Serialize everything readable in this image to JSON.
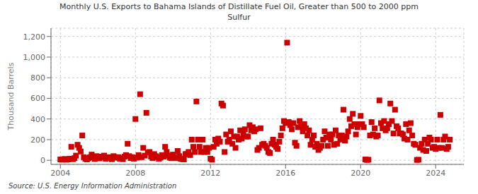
{
  "chart_data": {
    "type": "scatter",
    "title": "Monthly U.S. Exports to Bahama Islands of Distillate Fuel Oil, Greater than 500 to 2000 ppm\nSulfur",
    "ylabel": "Thousand Barrels",
    "annotations": [
      "Source: U.S. Energy Information Administration"
    ],
    "color": "#cc0000",
    "marker": "square",
    "grid": true,
    "xlim": [
      2003.5,
      2025.5
    ],
    "xticks": [
      2004,
      2008,
      2012,
      2016,
      2020,
      2024
    ],
    "ylim": [
      -40,
      1280
    ],
    "yticks": [
      0,
      200,
      400,
      600,
      800,
      {
        "value": 1000,
        "label": "1,000"
      },
      {
        "value": 1200,
        "label": "1,200"
      }
    ],
    "x": [
      2004.0,
      2004.083,
      2004.167,
      2004.25,
      2004.333,
      2004.417,
      2004.5,
      2004.583,
      2004.667,
      2004.75,
      2004.833,
      2004.917,
      2005.0,
      2005.083,
      2005.167,
      2005.25,
      2005.333,
      2005.417,
      2005.5,
      2005.583,
      2005.667,
      2005.75,
      2005.833,
      2005.917,
      2006.0,
      2006.083,
      2006.167,
      2006.25,
      2006.333,
      2006.417,
      2006.5,
      2006.583,
      2006.667,
      2006.75,
      2006.833,
      2006.917,
      2007.0,
      2007.083,
      2007.167,
      2007.25,
      2007.333,
      2007.417,
      2007.5,
      2007.583,
      2007.667,
      2007.75,
      2007.833,
      2007.917,
      2008.0,
      2008.083,
      2008.167,
      2008.25,
      2008.333,
      2008.417,
      2008.5,
      2008.583,
      2008.667,
      2008.75,
      2008.833,
      2008.917,
      2009.0,
      2009.083,
      2009.167,
      2009.25,
      2009.333,
      2009.417,
      2009.5,
      2009.583,
      2009.667,
      2009.75,
      2009.833,
      2009.917,
      2010.0,
      2010.083,
      2010.167,
      2010.25,
      2010.333,
      2010.417,
      2010.5,
      2010.583,
      2010.667,
      2010.75,
      2010.833,
      2010.917,
      2011.0,
      2011.083,
      2011.167,
      2011.25,
      2011.333,
      2011.417,
      2011.5,
      2011.583,
      2011.667,
      2011.75,
      2011.833,
      2011.917,
      2012.0,
      2012.083,
      2012.167,
      2012.25,
      2012.333,
      2012.417,
      2012.5,
      2012.583,
      2012.667,
      2012.75,
      2012.833,
      2012.917,
      2013.0,
      2013.083,
      2013.167,
      2013.25,
      2013.333,
      2013.417,
      2013.5,
      2013.583,
      2013.667,
      2013.75,
      2013.833,
      2013.917,
      2014.0,
      2014.083,
      2014.167,
      2014.25,
      2014.333,
      2014.417,
      2014.5,
      2014.583,
      2014.667,
      2014.75,
      2014.833,
      2014.917,
      2015.0,
      2015.083,
      2015.167,
      2015.25,
      2015.333,
      2015.417,
      2015.5,
      2015.583,
      2015.667,
      2015.75,
      2015.833,
      2015.917,
      2016.0,
      2016.083,
      2016.167,
      2016.25,
      2016.333,
      2016.417,
      2016.5,
      2016.583,
      2016.667,
      2016.75,
      2016.833,
      2016.917,
      2017.0,
      2017.083,
      2017.167,
      2017.25,
      2017.333,
      2017.417,
      2017.5,
      2017.583,
      2017.667,
      2017.75,
      2017.833,
      2017.917,
      2018.0,
      2018.083,
      2018.167,
      2018.25,
      2018.333,
      2018.417,
      2018.5,
      2018.583,
      2018.667,
      2018.75,
      2018.833,
      2018.917,
      2019.0,
      2019.083,
      2019.167,
      2019.25,
      2019.333,
      2019.417,
      2019.5,
      2019.583,
      2019.667,
      2019.75,
      2019.833,
      2019.917,
      2020.0,
      2020.083,
      2020.167,
      2020.25,
      2020.333,
      2020.417,
      2020.5,
      2020.583,
      2020.667,
      2020.75,
      2020.833,
      2020.917,
      2021.0,
      2021.083,
      2021.167,
      2021.25,
      2021.333,
      2021.417,
      2021.5,
      2021.583,
      2021.667,
      2021.75,
      2021.833,
      2021.917,
      2022.0,
      2022.083,
      2022.167,
      2022.25,
      2022.333,
      2022.417,
      2022.5,
      2022.583,
      2022.667,
      2022.75,
      2022.833,
      2022.917,
      2023.0,
      2023.083,
      2023.167,
      2023.25,
      2023.333,
      2023.417,
      2023.5,
      2023.583,
      2023.667,
      2023.75,
      2023.833,
      2023.917,
      2024.0,
      2024.083,
      2024.167,
      2024.25,
      2024.333,
      2024.417,
      2024.5,
      2024.583,
      2024.667,
      2024.75
    ],
    "values": [
      8,
      5,
      10,
      12,
      5,
      8,
      15,
      130,
      10,
      20,
      45,
      150,
      120,
      85,
      240,
      30,
      15,
      8,
      20,
      30,
      55,
      30,
      12,
      40,
      25,
      18,
      35,
      30,
      45,
      15,
      20,
      30,
      25,
      10,
      40,
      30,
      25,
      30,
      15,
      20,
      10,
      35,
      50,
      160,
      40,
      20,
      30,
      15,
      400,
      25,
      50,
      640,
      30,
      120,
      45,
      460,
      75,
      80,
      35,
      20,
      60,
      40,
      30,
      15,
      25,
      50,
      35,
      130,
      80,
      45,
      25,
      20,
      55,
      30,
      20,
      90,
      40,
      15,
      10,
      8,
      60,
      60,
      80,
      50,
      200,
      130,
      80,
      570,
      200,
      130,
      80,
      200,
      80,
      120,
      80,
      120,
      15,
      5,
      130,
      200,
      160,
      210,
      180,
      550,
      530,
      80,
      250,
      180,
      200,
      280,
      160,
      230,
      120,
      230,
      200,
      290,
      210,
      260,
      300,
      230,
      230,
      340,
      290,
      320,
      280,
      300,
      100,
      120,
      310,
      150,
      160,
      140,
      120,
      80,
      70,
      160,
      200,
      150,
      130,
      110,
      180,
      240,
      310,
      380,
      360,
      1140,
      370,
      340,
      300,
      360,
      170,
      140,
      320,
      380,
      330,
      280,
      350,
      310,
      240,
      290,
      150,
      200,
      240,
      130,
      160,
      100,
      120,
      140,
      200,
      280,
      220,
      140,
      250,
      200,
      250,
      150,
      290,
      160,
      240,
      200,
      240,
      490,
      190,
      230,
      280,
      400,
      330,
      450,
      350,
      250,
      320,
      350,
      430,
      350,
      320,
      8,
      3,
      5,
      240,
      370,
      250,
      310,
      230,
      240,
      580,
      360,
      310,
      380,
      290,
      310,
      350,
      550,
      380,
      260,
      490,
      330,
      310,
      260,
      260,
      250,
      210,
      350,
      200,
      290,
      360,
      240,
      160,
      150,
      3,
      5,
      120,
      160,
      100,
      200,
      90,
      160,
      220,
      200,
      120,
      130,
      110,
      200,
      120,
      440,
      120,
      200,
      230,
      110,
      130,
      200
    ]
  }
}
